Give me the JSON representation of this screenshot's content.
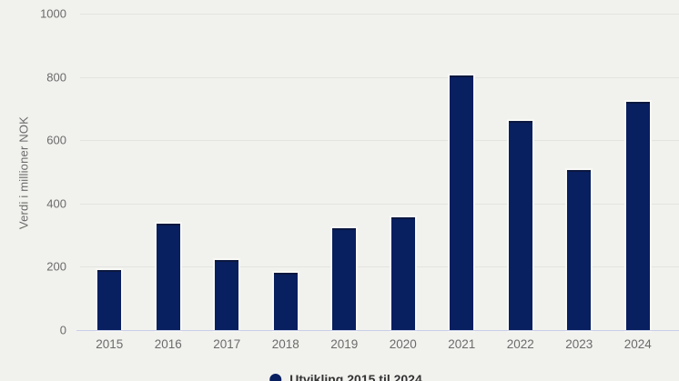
{
  "chart_data": {
    "type": "bar",
    "categories": [
      "2015",
      "2016",
      "2017",
      "2018",
      "2019",
      "2020",
      "2021",
      "2022",
      "2023",
      "2024"
    ],
    "values": [
      190,
      335,
      222,
      180,
      322,
      355,
      805,
      660,
      505,
      720
    ],
    "title": "",
    "xlabel": "",
    "ylabel": "Verdi i millioner NOK",
    "ylim": [
      0,
      1000
    ],
    "ytick_interval": 200,
    "yticks": [
      0,
      200,
      400,
      600,
      800,
      1000
    ],
    "grid": true,
    "legend": {
      "position": "bottom",
      "marker": "circle",
      "label": "Utvikling 2015 til 2024"
    },
    "colors": {
      "bar": "#081f60",
      "background": "#f1f2ee",
      "gridline": "#e3e4e0",
      "axis_line": "#c9cfe7",
      "tick_text": "#6b6b6b",
      "legend_text": "#333333"
    }
  }
}
